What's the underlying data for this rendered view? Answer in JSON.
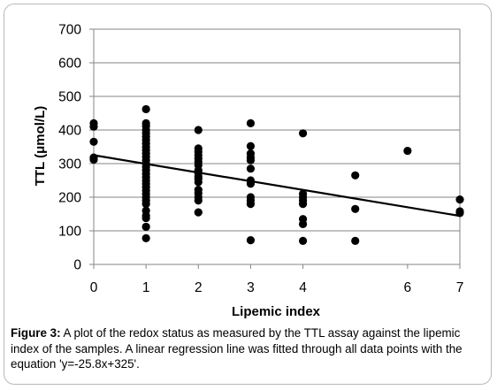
{
  "chart_data": {
    "type": "scatter",
    "xlabel": "Lipemic index",
    "ylabel": "TTL (μmol/L)",
    "xlim": [
      0,
      7
    ],
    "ylim": [
      0,
      700
    ],
    "x_ticks": [
      0,
      1,
      2,
      3,
      4,
      6,
      7
    ],
    "y_ticks": [
      0,
      100,
      200,
      300,
      400,
      500,
      600,
      700
    ],
    "grid": "horizontal",
    "legend": "none",
    "points": [
      [
        0,
        420
      ],
      [
        0,
        410
      ],
      [
        0,
        365
      ],
      [
        0,
        318
      ],
      [
        0,
        312
      ],
      [
        1,
        462
      ],
      [
        1,
        420
      ],
      [
        1,
        412
      ],
      [
        1,
        400
      ],
      [
        1,
        390
      ],
      [
        1,
        380
      ],
      [
        1,
        370
      ],
      [
        1,
        360
      ],
      [
        1,
        350
      ],
      [
        1,
        340
      ],
      [
        1,
        330
      ],
      [
        1,
        320
      ],
      [
        1,
        310
      ],
      [
        1,
        300
      ],
      [
        1,
        290
      ],
      [
        1,
        280
      ],
      [
        1,
        270
      ],
      [
        1,
        260
      ],
      [
        1,
        250
      ],
      [
        1,
        240
      ],
      [
        1,
        230
      ],
      [
        1,
        220
      ],
      [
        1,
        210
      ],
      [
        1,
        200
      ],
      [
        1,
        190
      ],
      [
        1,
        180
      ],
      [
        1,
        160
      ],
      [
        1,
        145
      ],
      [
        1,
        138
      ],
      [
        1,
        112
      ],
      [
        1,
        78
      ],
      [
        2,
        400
      ],
      [
        2,
        345
      ],
      [
        2,
        335
      ],
      [
        2,
        325
      ],
      [
        2,
        315
      ],
      [
        2,
        305
      ],
      [
        2,
        295
      ],
      [
        2,
        280
      ],
      [
        2,
        272
      ],
      [
        2,
        262
      ],
      [
        2,
        255
      ],
      [
        2,
        245
      ],
      [
        2,
        222
      ],
      [
        2,
        212
      ],
      [
        2,
        200
      ],
      [
        2,
        190
      ],
      [
        2,
        155
      ],
      [
        3,
        420
      ],
      [
        3,
        352
      ],
      [
        3,
        330
      ],
      [
        3,
        318
      ],
      [
        3,
        310
      ],
      [
        3,
        285
      ],
      [
        3,
        250
      ],
      [
        3,
        240
      ],
      [
        3,
        200
      ],
      [
        3,
        190
      ],
      [
        3,
        180
      ],
      [
        3,
        72
      ],
      [
        4,
        390
      ],
      [
        4,
        210
      ],
      [
        4,
        200
      ],
      [
        4,
        190
      ],
      [
        4,
        180
      ],
      [
        4,
        135
      ],
      [
        4,
        120
      ],
      [
        4,
        70
      ],
      [
        5,
        265
      ],
      [
        5,
        165
      ],
      [
        5,
        70
      ],
      [
        6,
        338
      ],
      [
        7,
        193
      ],
      [
        7,
        158
      ],
      [
        7,
        153
      ]
    ],
    "regression": {
      "slope": -25.8,
      "intercept": 325,
      "x_range": [
        0,
        7
      ]
    },
    "colors": {
      "points": "#000000",
      "line": "#000000",
      "grid": "#868686",
      "axis": "#868686"
    }
  },
  "caption": {
    "label": "Figure 3:",
    "text": " A plot of the redox status as measured by the TTL assay against the lipemic index of the samples. A linear regression line was fitted through all data points with the equation 'y=-25.8x+325'."
  }
}
